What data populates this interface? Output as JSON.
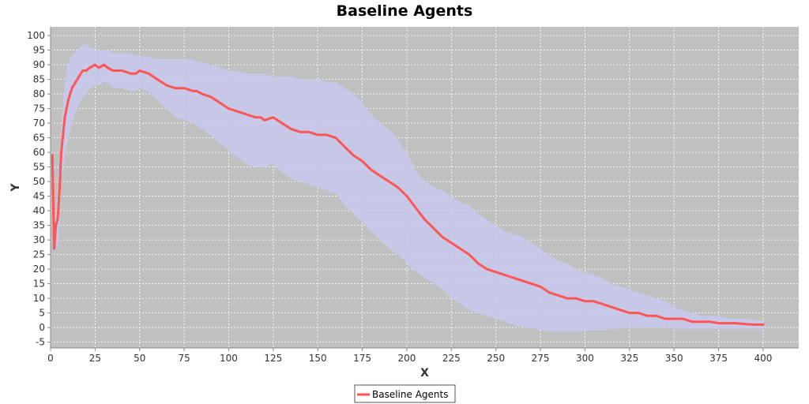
{
  "chart_data": {
    "type": "line",
    "title": "Baseline Agents",
    "xlabel": "X",
    "ylabel": "Y",
    "xlim": [
      0,
      420
    ],
    "ylim": [
      -7,
      103
    ],
    "x_ticks": [
      0,
      25,
      50,
      75,
      100,
      125,
      150,
      175,
      200,
      225,
      250,
      275,
      300,
      325,
      350,
      375,
      400
    ],
    "y_ticks": [
      -5,
      0,
      5,
      10,
      15,
      20,
      25,
      30,
      35,
      40,
      45,
      50,
      55,
      60,
      65,
      70,
      75,
      80,
      85,
      90,
      95,
      100
    ],
    "grid": true,
    "legend_position": "bottom",
    "background": "#c0c0c0",
    "series": [
      {
        "name": "Baseline Agents",
        "color": "#ff5555",
        "band_color": "#c8c8ee",
        "x": [
          1,
          2,
          3,
          4,
          5,
          6,
          7,
          8,
          10,
          12,
          15,
          18,
          20,
          22,
          25,
          27,
          30,
          32,
          35,
          40,
          45,
          48,
          50,
          55,
          60,
          65,
          70,
          75,
          80,
          82,
          85,
          90,
          95,
          100,
          105,
          110,
          115,
          118,
          120,
          125,
          130,
          135,
          140,
          145,
          150,
          155,
          160,
          165,
          170,
          175,
          180,
          185,
          190,
          195,
          200,
          205,
          210,
          215,
          220,
          225,
          230,
          235,
          240,
          245,
          250,
          255,
          260,
          265,
          270,
          275,
          280,
          285,
          290,
          295,
          300,
          305,
          310,
          315,
          320,
          325,
          330,
          335,
          340,
          345,
          350,
          355,
          360,
          365,
          370,
          375,
          380,
          385,
          390,
          395,
          400
        ],
        "y": [
          59,
          27,
          35,
          37,
          47,
          60,
          66,
          72,
          78,
          82,
          85,
          88,
          88,
          89,
          90,
          89,
          90,
          89,
          88,
          88,
          87,
          87,
          88,
          87,
          85,
          83,
          82,
          82,
          81,
          81,
          80,
          79,
          77,
          75,
          74,
          73,
          72,
          72,
          71,
          72,
          70,
          68,
          67,
          67,
          66,
          66,
          65,
          62,
          59,
          57,
          54,
          52,
          50,
          48,
          45,
          41,
          37,
          34,
          31,
          29,
          27,
          25,
          22,
          20,
          19,
          18,
          17,
          16,
          15,
          14,
          12,
          11,
          10,
          10,
          9,
          9,
          8,
          7,
          6,
          5,
          5,
          4,
          4,
          3,
          3,
          3,
          2,
          2,
          2,
          1.5,
          1.5,
          1.5,
          1.2,
          1.0,
          1.0
        ],
        "band_upper": [
          59,
          30,
          40,
          48,
          58,
          68,
          78,
          85,
          91,
          93,
          95,
          97,
          97,
          96,
          95,
          95,
          95,
          95,
          94,
          94,
          94,
          93,
          93,
          93,
          92,
          92,
          92,
          92,
          92,
          91,
          91,
          90,
          89,
          88,
          88,
          87,
          87,
          87,
          87,
          86,
          86,
          86,
          85,
          85,
          85,
          84,
          84,
          82,
          80,
          77,
          73,
          70,
          68,
          64,
          60,
          54,
          50,
          48,
          47,
          45,
          43,
          42,
          39,
          37,
          35,
          33,
          32,
          31,
          29,
          27,
          25,
          23,
          22,
          20,
          19,
          18,
          17,
          15,
          14,
          13,
          12,
          11,
          10,
          9,
          7,
          6,
          5,
          4,
          4,
          4,
          3,
          3,
          3,
          2.5,
          2.5
        ],
        "band_lower": [
          59,
          24,
          30,
          26,
          36,
          52,
          54,
          59,
          65,
          70,
          75,
          79,
          80,
          82,
          83,
          83,
          84,
          84,
          82,
          82,
          81,
          81,
          82,
          81,
          78,
          75,
          72,
          71,
          70,
          69,
          68,
          66,
          63,
          61,
          58,
          56,
          55,
          55,
          55,
          56,
          53,
          51,
          50,
          49,
          48,
          47,
          46,
          42,
          39,
          36,
          33,
          30,
          27,
          25,
          22,
          19,
          17,
          15,
          13,
          10,
          8,
          6,
          5,
          4,
          3,
          2,
          1,
          0,
          0,
          -1,
          -1.5,
          -1.5,
          -1.5,
          -1.5,
          -1,
          -1,
          -1,
          -0.5,
          -0.5,
          0,
          0,
          0,
          0,
          0,
          -0.5,
          -0.5,
          -0.5,
          -0.5,
          -0.5,
          -0.5,
          -0.5,
          -0.5,
          -0.5,
          -0.5,
          -0.5
        ]
      }
    ]
  }
}
